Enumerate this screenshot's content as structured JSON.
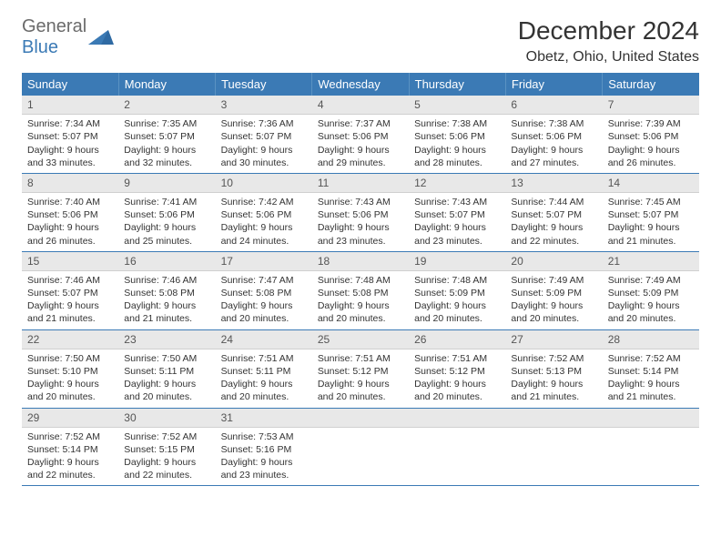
{
  "brand": {
    "text_part1": "General",
    "text_part2": "Blue",
    "icon_color": "#2f6aa3"
  },
  "header": {
    "month_title": "December 2024",
    "location": "Obetz, Ohio, United States"
  },
  "colors": {
    "header_bg": "#3b7ab5",
    "header_text": "#ffffff",
    "daybar_bg": "#e8e8e8",
    "row_border": "#3b7ab5",
    "body_text": "#333333"
  },
  "day_headers": [
    "Sunday",
    "Monday",
    "Tuesday",
    "Wednesday",
    "Thursday",
    "Friday",
    "Saturday"
  ],
  "weeks": [
    [
      {
        "day": "1",
        "sunrise": "Sunrise: 7:34 AM",
        "sunset": "Sunset: 5:07 PM",
        "daylight1": "Daylight: 9 hours",
        "daylight2": "and 33 minutes."
      },
      {
        "day": "2",
        "sunrise": "Sunrise: 7:35 AM",
        "sunset": "Sunset: 5:07 PM",
        "daylight1": "Daylight: 9 hours",
        "daylight2": "and 32 minutes."
      },
      {
        "day": "3",
        "sunrise": "Sunrise: 7:36 AM",
        "sunset": "Sunset: 5:07 PM",
        "daylight1": "Daylight: 9 hours",
        "daylight2": "and 30 minutes."
      },
      {
        "day": "4",
        "sunrise": "Sunrise: 7:37 AM",
        "sunset": "Sunset: 5:06 PM",
        "daylight1": "Daylight: 9 hours",
        "daylight2": "and 29 minutes."
      },
      {
        "day": "5",
        "sunrise": "Sunrise: 7:38 AM",
        "sunset": "Sunset: 5:06 PM",
        "daylight1": "Daylight: 9 hours",
        "daylight2": "and 28 minutes."
      },
      {
        "day": "6",
        "sunrise": "Sunrise: 7:38 AM",
        "sunset": "Sunset: 5:06 PM",
        "daylight1": "Daylight: 9 hours",
        "daylight2": "and 27 minutes."
      },
      {
        "day": "7",
        "sunrise": "Sunrise: 7:39 AM",
        "sunset": "Sunset: 5:06 PM",
        "daylight1": "Daylight: 9 hours",
        "daylight2": "and 26 minutes."
      }
    ],
    [
      {
        "day": "8",
        "sunrise": "Sunrise: 7:40 AM",
        "sunset": "Sunset: 5:06 PM",
        "daylight1": "Daylight: 9 hours",
        "daylight2": "and 26 minutes."
      },
      {
        "day": "9",
        "sunrise": "Sunrise: 7:41 AM",
        "sunset": "Sunset: 5:06 PM",
        "daylight1": "Daylight: 9 hours",
        "daylight2": "and 25 minutes."
      },
      {
        "day": "10",
        "sunrise": "Sunrise: 7:42 AM",
        "sunset": "Sunset: 5:06 PM",
        "daylight1": "Daylight: 9 hours",
        "daylight2": "and 24 minutes."
      },
      {
        "day": "11",
        "sunrise": "Sunrise: 7:43 AM",
        "sunset": "Sunset: 5:06 PM",
        "daylight1": "Daylight: 9 hours",
        "daylight2": "and 23 minutes."
      },
      {
        "day": "12",
        "sunrise": "Sunrise: 7:43 AM",
        "sunset": "Sunset: 5:07 PM",
        "daylight1": "Daylight: 9 hours",
        "daylight2": "and 23 minutes."
      },
      {
        "day": "13",
        "sunrise": "Sunrise: 7:44 AM",
        "sunset": "Sunset: 5:07 PM",
        "daylight1": "Daylight: 9 hours",
        "daylight2": "and 22 minutes."
      },
      {
        "day": "14",
        "sunrise": "Sunrise: 7:45 AM",
        "sunset": "Sunset: 5:07 PM",
        "daylight1": "Daylight: 9 hours",
        "daylight2": "and 21 minutes."
      }
    ],
    [
      {
        "day": "15",
        "sunrise": "Sunrise: 7:46 AM",
        "sunset": "Sunset: 5:07 PM",
        "daylight1": "Daylight: 9 hours",
        "daylight2": "and 21 minutes."
      },
      {
        "day": "16",
        "sunrise": "Sunrise: 7:46 AM",
        "sunset": "Sunset: 5:08 PM",
        "daylight1": "Daylight: 9 hours",
        "daylight2": "and 21 minutes."
      },
      {
        "day": "17",
        "sunrise": "Sunrise: 7:47 AM",
        "sunset": "Sunset: 5:08 PM",
        "daylight1": "Daylight: 9 hours",
        "daylight2": "and 20 minutes."
      },
      {
        "day": "18",
        "sunrise": "Sunrise: 7:48 AM",
        "sunset": "Sunset: 5:08 PM",
        "daylight1": "Daylight: 9 hours",
        "daylight2": "and 20 minutes."
      },
      {
        "day": "19",
        "sunrise": "Sunrise: 7:48 AM",
        "sunset": "Sunset: 5:09 PM",
        "daylight1": "Daylight: 9 hours",
        "daylight2": "and 20 minutes."
      },
      {
        "day": "20",
        "sunrise": "Sunrise: 7:49 AM",
        "sunset": "Sunset: 5:09 PM",
        "daylight1": "Daylight: 9 hours",
        "daylight2": "and 20 minutes."
      },
      {
        "day": "21",
        "sunrise": "Sunrise: 7:49 AM",
        "sunset": "Sunset: 5:09 PM",
        "daylight1": "Daylight: 9 hours",
        "daylight2": "and 20 minutes."
      }
    ],
    [
      {
        "day": "22",
        "sunrise": "Sunrise: 7:50 AM",
        "sunset": "Sunset: 5:10 PM",
        "daylight1": "Daylight: 9 hours",
        "daylight2": "and 20 minutes."
      },
      {
        "day": "23",
        "sunrise": "Sunrise: 7:50 AM",
        "sunset": "Sunset: 5:11 PM",
        "daylight1": "Daylight: 9 hours",
        "daylight2": "and 20 minutes."
      },
      {
        "day": "24",
        "sunrise": "Sunrise: 7:51 AM",
        "sunset": "Sunset: 5:11 PM",
        "daylight1": "Daylight: 9 hours",
        "daylight2": "and 20 minutes."
      },
      {
        "day": "25",
        "sunrise": "Sunrise: 7:51 AM",
        "sunset": "Sunset: 5:12 PM",
        "daylight1": "Daylight: 9 hours",
        "daylight2": "and 20 minutes."
      },
      {
        "day": "26",
        "sunrise": "Sunrise: 7:51 AM",
        "sunset": "Sunset: 5:12 PM",
        "daylight1": "Daylight: 9 hours",
        "daylight2": "and 20 minutes."
      },
      {
        "day": "27",
        "sunrise": "Sunrise: 7:52 AM",
        "sunset": "Sunset: 5:13 PM",
        "daylight1": "Daylight: 9 hours",
        "daylight2": "and 21 minutes."
      },
      {
        "day": "28",
        "sunrise": "Sunrise: 7:52 AM",
        "sunset": "Sunset: 5:14 PM",
        "daylight1": "Daylight: 9 hours",
        "daylight2": "and 21 minutes."
      }
    ],
    [
      {
        "day": "29",
        "sunrise": "Sunrise: 7:52 AM",
        "sunset": "Sunset: 5:14 PM",
        "daylight1": "Daylight: 9 hours",
        "daylight2": "and 22 minutes."
      },
      {
        "day": "30",
        "sunrise": "Sunrise: 7:52 AM",
        "sunset": "Sunset: 5:15 PM",
        "daylight1": "Daylight: 9 hours",
        "daylight2": "and 22 minutes."
      },
      {
        "day": "31",
        "sunrise": "Sunrise: 7:53 AM",
        "sunset": "Sunset: 5:16 PM",
        "daylight1": "Daylight: 9 hours",
        "daylight2": "and 23 minutes."
      },
      {
        "empty": true
      },
      {
        "empty": true
      },
      {
        "empty": true
      },
      {
        "empty": true
      }
    ]
  ]
}
